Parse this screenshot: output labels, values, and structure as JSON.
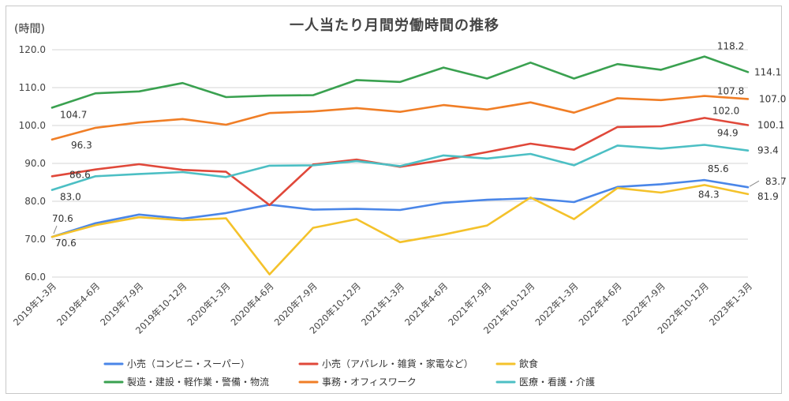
{
  "chart_data": {
    "type": "line",
    "title": "一人当たり月間労働時間の推移",
    "ylabel": "(時間)",
    "xlabel": "",
    "ylim": [
      60,
      120
    ],
    "yticks": [
      "60.0",
      "70.0",
      "80.0",
      "90.0",
      "100.0",
      "110.0",
      "120.0"
    ],
    "categories": [
      "2019年1-3月",
      "2019年4-6月",
      "2019年7-9月",
      "2019年10-12月",
      "2020年1-3月",
      "2020年4-6月",
      "2020年7-9月",
      "2020年10-12月",
      "2021年1-3月",
      "2021年4-6月",
      "2021年7-9月",
      "2021年10-12月",
      "2022年1-3月",
      "2022年4-6月",
      "2022年7-9月",
      "2022年10-12月",
      "2023年1-3月"
    ],
    "grid": true,
    "legend": "bottom",
    "series": [
      {
        "name": "小売（コンビニ・スーパー）",
        "color": "#4a86e8",
        "values": [
          70.6,
          74.2,
          76.5,
          75.4,
          76.9,
          79.1,
          77.8,
          78.0,
          77.7,
          79.6,
          80.4,
          80.8,
          79.8,
          83.8,
          84.5,
          85.6,
          83.7
        ]
      },
      {
        "name": "小売（アパレル・雑貨・家電など）",
        "color": "#e0483a",
        "values": [
          86.6,
          88.4,
          89.8,
          88.3,
          87.8,
          79.0,
          89.7,
          91.0,
          89.1,
          90.9,
          93.0,
          95.2,
          93.6,
          99.6,
          99.8,
          102.0,
          100.1
        ]
      },
      {
        "name": "飲食",
        "color": "#f4c22b",
        "values": [
          70.6,
          73.7,
          75.8,
          75.0,
          75.5,
          60.7,
          73.0,
          75.3,
          69.2,
          71.2,
          73.6,
          81.0,
          75.3,
          83.5,
          82.3,
          84.3,
          81.9
        ]
      },
      {
        "name": "製造・建設・軽作業・警備・物流",
        "color": "#3aa150",
        "values": [
          104.7,
          108.5,
          109.0,
          111.2,
          107.5,
          107.9,
          108.0,
          112.0,
          111.5,
          115.3,
          112.4,
          116.6,
          112.4,
          116.2,
          114.7,
          118.2,
          114.1
        ]
      },
      {
        "name": "事務・オフィスワーク",
        "color": "#f07e26",
        "values": [
          96.3,
          99.4,
          100.8,
          101.7,
          100.2,
          103.3,
          103.7,
          104.6,
          103.6,
          105.4,
          104.2,
          106.1,
          103.4,
          107.2,
          106.7,
          107.8,
          107.0
        ]
      },
      {
        "name": "医療・看護・介護",
        "color": "#4cbfc4",
        "values": [
          83.0,
          86.6,
          87.2,
          87.7,
          86.4,
          89.4,
          89.5,
          90.6,
          89.3,
          92.1,
          91.3,
          92.5,
          89.5,
          94.7,
          93.9,
          94.9,
          93.4
        ]
      }
    ],
    "data_labels": [
      {
        "series": 3,
        "index": 0,
        "text": "104.7"
      },
      {
        "series": 3,
        "index": 15,
        "text": "118.2"
      },
      {
        "series": 3,
        "index": 16,
        "text": "114.1"
      },
      {
        "series": 4,
        "index": 0,
        "text": "96.3"
      },
      {
        "series": 4,
        "index": 15,
        "text": "107.8"
      },
      {
        "series": 4,
        "index": 16,
        "text": "107.0"
      },
      {
        "series": 1,
        "index": 0,
        "text": "86.6"
      },
      {
        "series": 1,
        "index": 15,
        "text": "102.0"
      },
      {
        "series": 1,
        "index": 16,
        "text": "100.1"
      },
      {
        "series": 5,
        "index": 0,
        "text": "83.0"
      },
      {
        "series": 5,
        "index": 15,
        "text": "94.9"
      },
      {
        "series": 5,
        "index": 16,
        "text": "93.4"
      },
      {
        "series": 0,
        "index": 0,
        "text": "70.6"
      },
      {
        "series": 0,
        "index": 15,
        "text": "85.6"
      },
      {
        "series": 0,
        "index": 16,
        "text": "83.7"
      },
      {
        "series": 2,
        "index": 0,
        "text": "70.6"
      },
      {
        "series": 2,
        "index": 15,
        "text": "84.3"
      },
      {
        "series": 2,
        "index": 16,
        "text": "81.9"
      }
    ]
  }
}
